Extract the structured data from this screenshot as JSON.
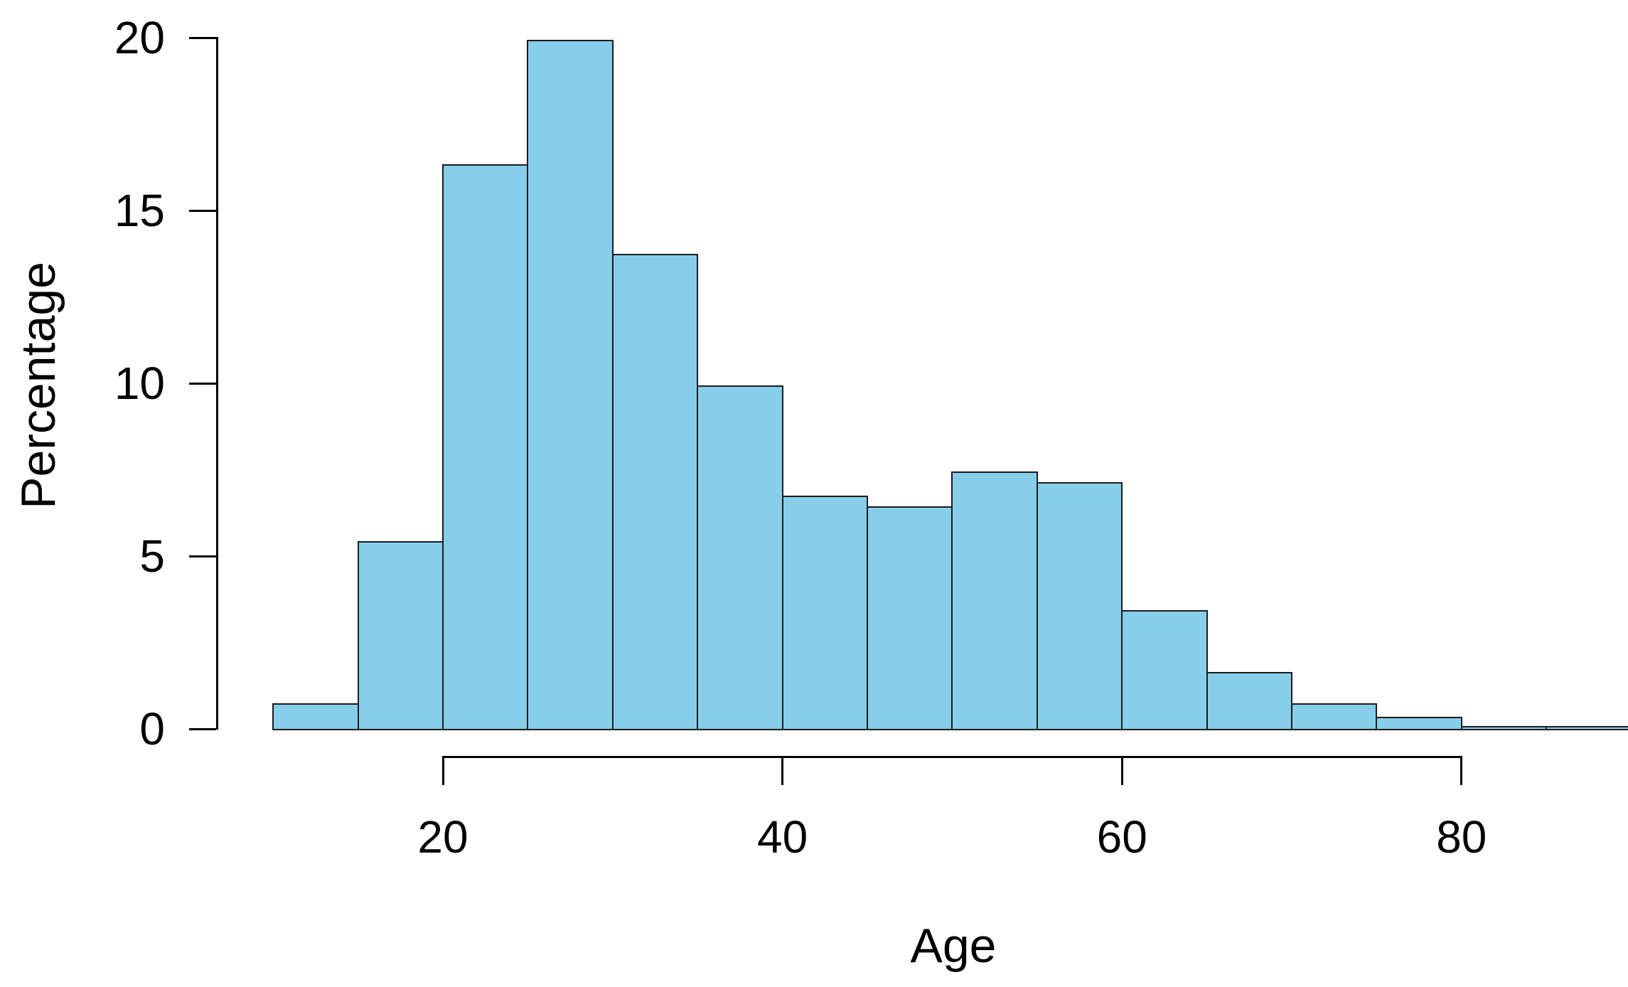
{
  "chart_data": {
    "type": "bar",
    "subtype": "histogram",
    "title": "",
    "xlabel": "Age",
    "ylabel": "Percentage",
    "bin_width": 5,
    "bin_edges": [
      10,
      15,
      20,
      25,
      30,
      35,
      40,
      45,
      50,
      55,
      60,
      65,
      70,
      75,
      80,
      85,
      90
    ],
    "categories": [
      "10-15",
      "15-20",
      "20-25",
      "25-30",
      "30-35",
      "35-40",
      "40-45",
      "45-50",
      "50-55",
      "55-60",
      "60-65",
      "65-70",
      "70-75",
      "75-80",
      "80-85",
      "85-90"
    ],
    "values": [
      0.7,
      5.4,
      16.3,
      19.9,
      13.7,
      9.9,
      6.7,
      6.4,
      7.4,
      7.1,
      3.4,
      1.6,
      0.7,
      0.3,
      0.05,
      0.05
    ],
    "xlim": [
      10,
      90
    ],
    "ylim": [
      0,
      20
    ],
    "x_ticks": [
      20,
      40,
      60,
      80
    ],
    "y_ticks": [
      0,
      5,
      10,
      15,
      20
    ],
    "grid": false,
    "legend": null,
    "bar_fill": "#87CEEB",
    "bar_border": "#1b1b1b",
    "axis_color": "#000000",
    "background": "#ffffff"
  }
}
